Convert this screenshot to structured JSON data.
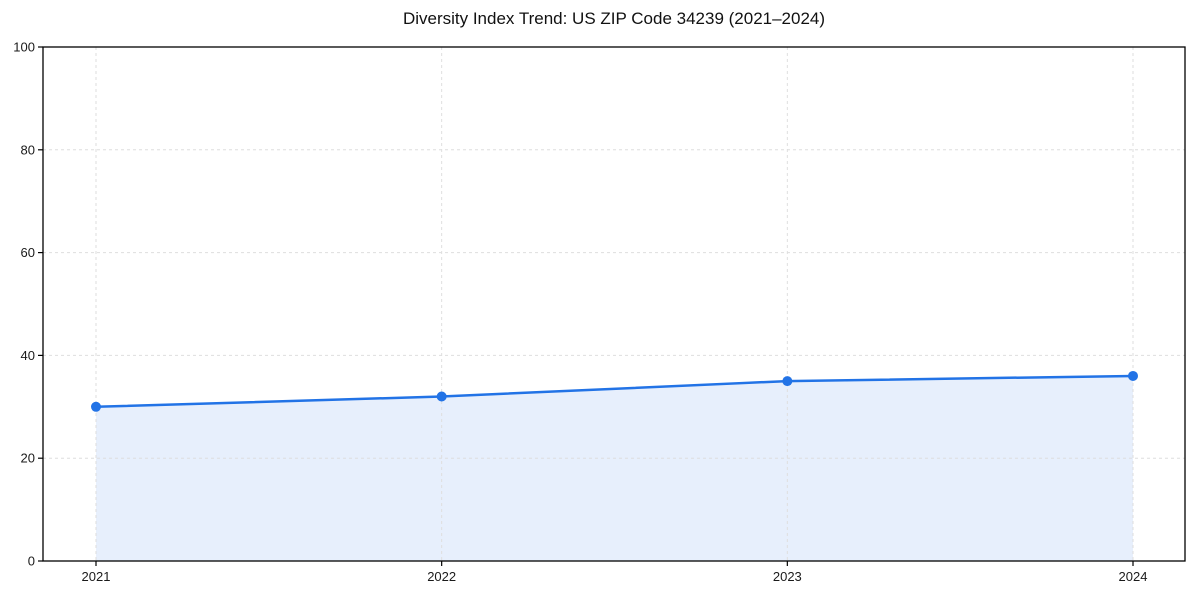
{
  "page": {
    "background_color": "#ffffff"
  },
  "chart_data": {
    "type": "line",
    "title": "Diversity Index Trend: US ZIP Code 34239 (2021–2024)",
    "categories": [
      "2021",
      "2022",
      "2023",
      "2024"
    ],
    "x": [
      2021,
      2022,
      2023,
      2024
    ],
    "series": [
      {
        "name": "Diversity Index",
        "values": [
          30,
          32,
          35,
          36
        ]
      }
    ],
    "xlabel": "",
    "ylabel": "",
    "ylim": [
      0,
      100
    ],
    "yticks": [
      0,
      20,
      40,
      60,
      80,
      100
    ],
    "ytick_labels": [
      "0",
      "20",
      "40",
      "60",
      "80",
      "100"
    ],
    "grid": true,
    "grid_style": "dashed",
    "legend_position": "none",
    "area_fill": true,
    "marker": "circle",
    "line_color": "#2273e6",
    "fill_color": "#e7effc",
    "grid_color": "#dedede",
    "spine_color": "#000000",
    "title_color": "#111111",
    "tick_label_color": "#1a1a1a"
  }
}
